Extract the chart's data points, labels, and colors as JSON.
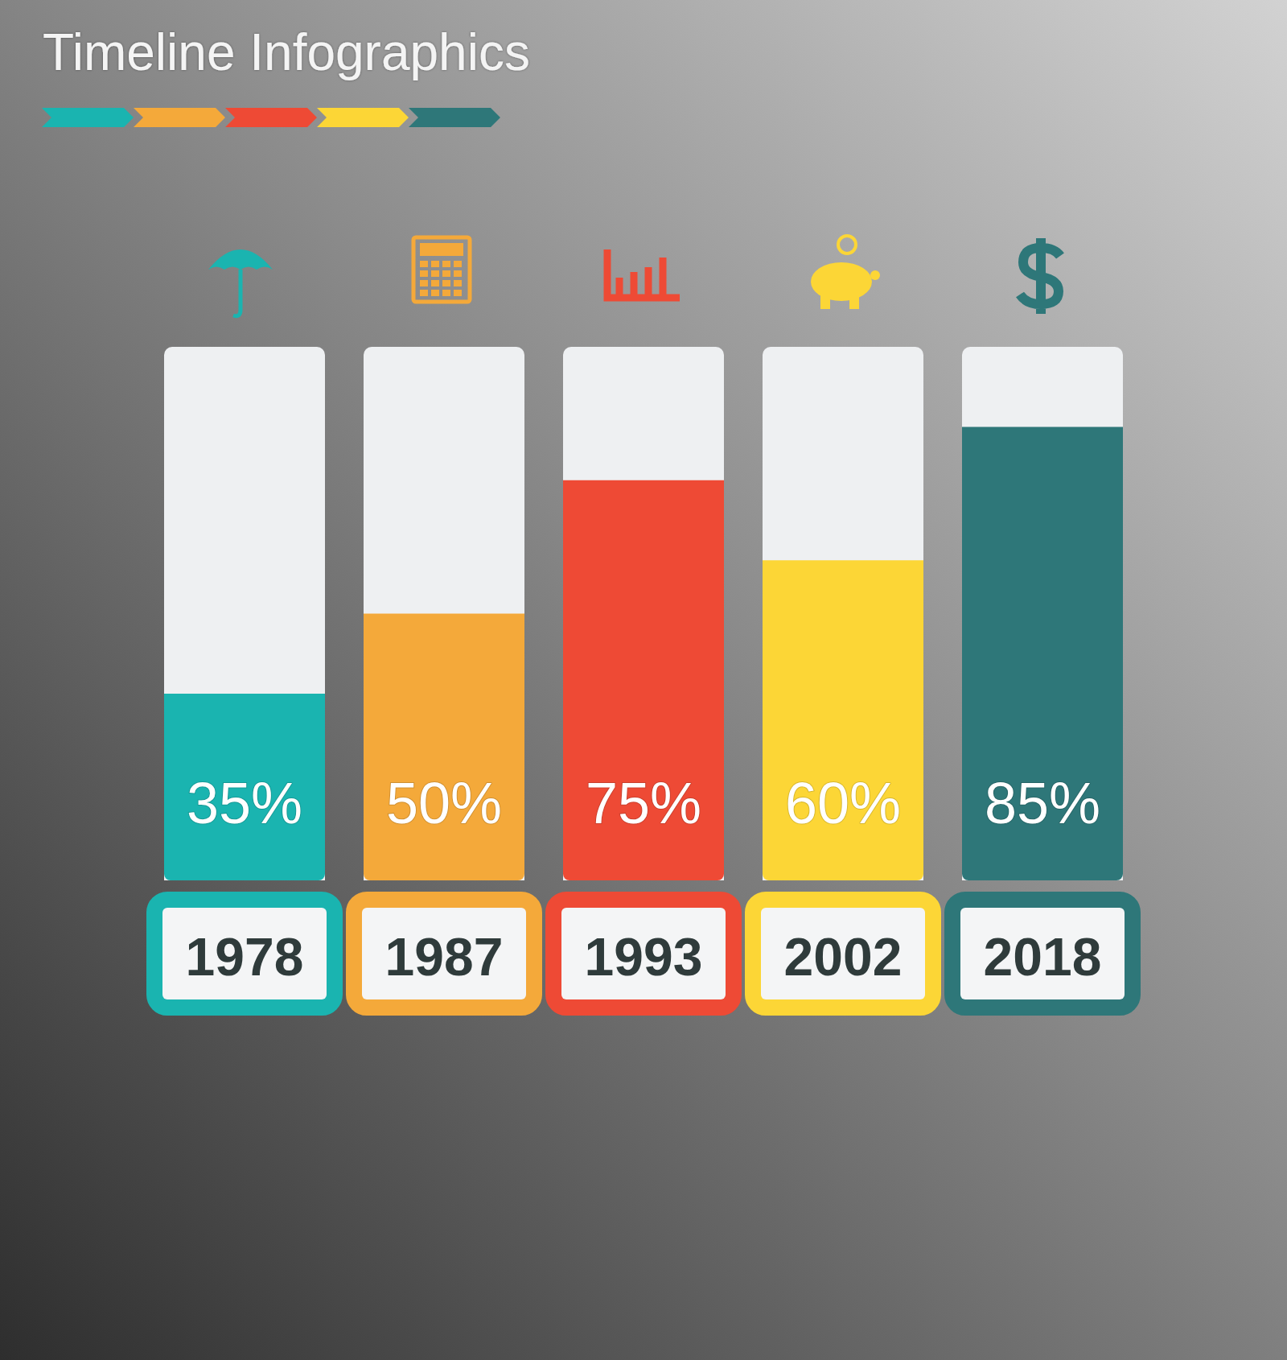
{
  "chart_data": {
    "type": "bar",
    "title": "Timeline Infographics",
    "categories": [
      "1978",
      "1987",
      "1993",
      "2002",
      "2018"
    ],
    "values": [
      35,
      50,
      75,
      60,
      85
    ],
    "colors": [
      "#1ab4b0",
      "#f4a93a",
      "#ee4a35",
      "#fcd636",
      "#2e7779"
    ],
    "value_labels": [
      "35%",
      "50%",
      "75%",
      "60%",
      "85%"
    ],
    "ylim": [
      0,
      100
    ],
    "tick_labels": "x"
  }
}
